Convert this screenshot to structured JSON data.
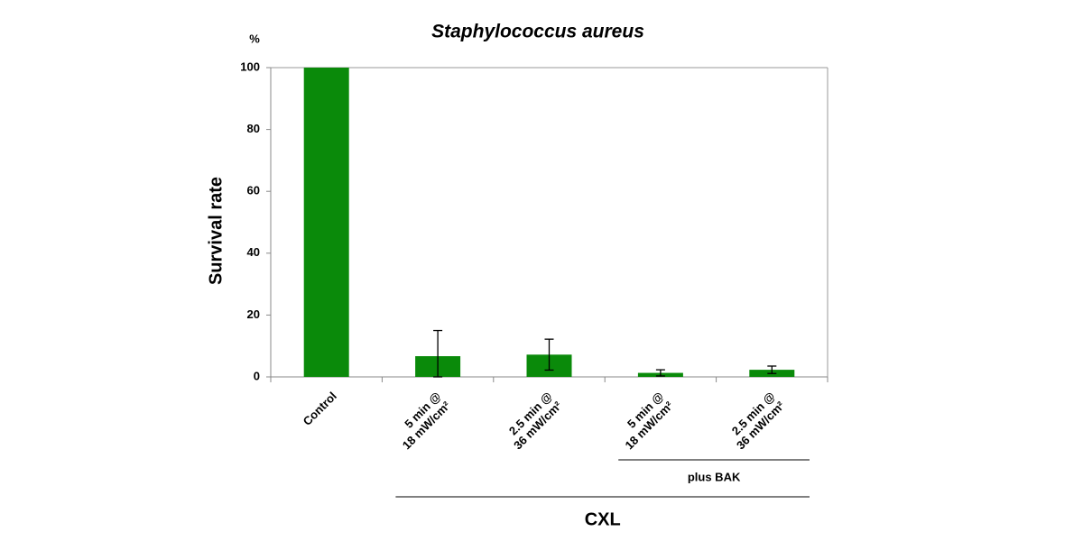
{
  "chart_data": {
    "type": "bar",
    "title": "Staphylococcus aureus",
    "y_label": "Survival rate",
    "y_unit": "%",
    "categories": [
      "Control",
      "5 min @\n18 mW/cm²",
      "2.5 min @\n36 mW/cm²",
      "5 min @\n18 mW/cm²",
      "2.5 min @\n36 mW/cm²"
    ],
    "values": [
      100,
      6.7,
      7.2,
      1.3,
      2.3
    ],
    "errors": [
      0,
      8.3,
      5,
      1,
      1.2
    ],
    "color": "#0a8a0a",
    "ylim": [
      0,
      100
    ],
    "yticks": [
      0,
      20,
      40,
      60,
      80,
      100
    ],
    "grid": false,
    "group_labels": [
      "plus BAK",
      "CXL"
    ]
  }
}
